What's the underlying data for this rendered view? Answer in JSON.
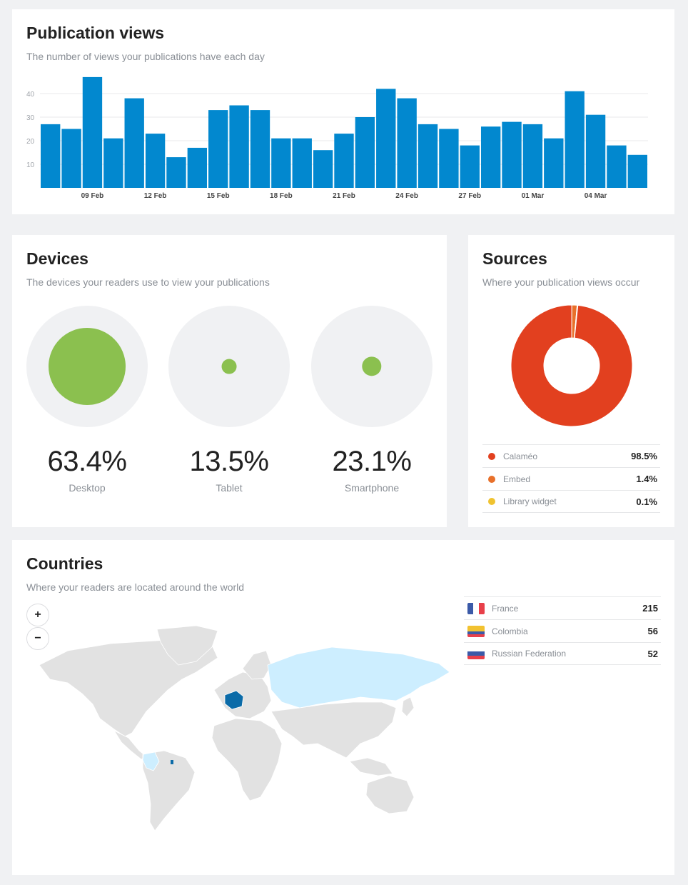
{
  "views": {
    "title": "Publication views",
    "subtitle": "The number of views your publications have each day"
  },
  "chart_data": {
    "type": "bar",
    "values": [
      27,
      25,
      47,
      21,
      38,
      23,
      13,
      17,
      33,
      35,
      33,
      21,
      21,
      16,
      23,
      30,
      42,
      38,
      27,
      25,
      18,
      26,
      28,
      27,
      21,
      41,
      31,
      18,
      14
    ],
    "tick_labels": [
      {
        "index": 2,
        "label": "09 Feb"
      },
      {
        "index": 5,
        "label": "12 Feb"
      },
      {
        "index": 8,
        "label": "15 Feb"
      },
      {
        "index": 11,
        "label": "18 Feb"
      },
      {
        "index": 14,
        "label": "21 Feb"
      },
      {
        "index": 17,
        "label": "24 Feb"
      },
      {
        "index": 20,
        "label": "27 Feb"
      },
      {
        "index": 23,
        "label": "01 Mar"
      },
      {
        "index": 26,
        "label": "04 Mar"
      }
    ],
    "yticks": [
      10,
      20,
      30,
      40
    ],
    "ylim": [
      0,
      50
    ],
    "grid": true,
    "color": "#0288cf"
  },
  "devices": {
    "title": "Devices",
    "subtitle": "The devices your readers use to view your publications",
    "items": [
      {
        "pct": "63.4%",
        "label": "Desktop",
        "value": 63.4
      },
      {
        "pct": "13.5%",
        "label": "Tablet",
        "value": 13.5
      },
      {
        "pct": "23.1%",
        "label": "Smartphone",
        "value": 23.1
      }
    ],
    "color": "#8bc04f"
  },
  "sources": {
    "title": "Sources",
    "subtitle": "Where your publication views occur",
    "items": [
      {
        "name": "Calaméo",
        "pct": "98.5%",
        "value": 98.5,
        "color": "#e2401f"
      },
      {
        "name": "Embed",
        "pct": "1.4%",
        "value": 1.4,
        "color": "#e8702a"
      },
      {
        "name": "Library widget",
        "pct": "0.1%",
        "value": 0.1,
        "color": "#f0c330"
      }
    ]
  },
  "countries": {
    "title": "Countries",
    "subtitle": "Where your readers are located around the world",
    "zoom_in": "+",
    "zoom_out": "−",
    "items": [
      {
        "name": "France",
        "count": "215",
        "flag": [
          "#3b5aa8",
          "#ffffff",
          "#e8404a"
        ]
      },
      {
        "name": "Colombia",
        "count": "56",
        "flag": [
          "#f2c230",
          "#f2c230",
          "#3b5aa8",
          "#e8404a"
        ]
      },
      {
        "name": "Russian Federation",
        "count": "52",
        "flag": [
          "#ffffff",
          "#3b5aa8",
          "#e8404a"
        ]
      }
    ]
  }
}
